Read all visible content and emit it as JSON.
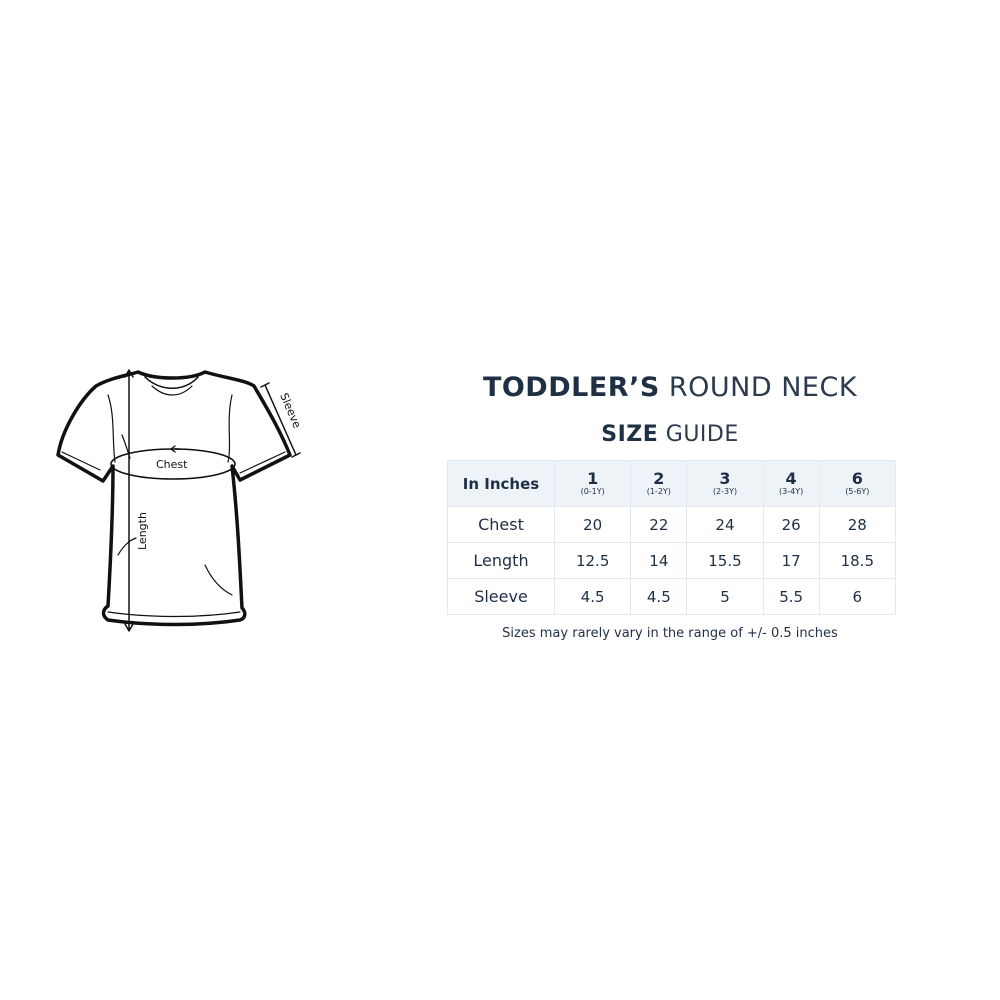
{
  "diagram": {
    "chest_label": "Chest",
    "length_label": "Length",
    "sleeve_label": "Sleeve"
  },
  "title": {
    "line1_bold": "TODDLER’S",
    "line1_light": "ROUND NECK",
    "line2_bold": "SIZE",
    "line2_light": "GUIDE"
  },
  "table": {
    "corner": "In Inches",
    "sizes": [
      {
        "size": "1",
        "age": "(0-1Y)"
      },
      {
        "size": "2",
        "age": "(1-2Y)"
      },
      {
        "size": "3",
        "age": "(2-3Y)"
      },
      {
        "size": "4",
        "age": "(3-4Y)"
      },
      {
        "size": "6",
        "age": "(5-6Y)"
      }
    ],
    "rows": [
      {
        "label": "Chest",
        "values": [
          "20",
          "22",
          "24",
          "26",
          "28"
        ]
      },
      {
        "label": "Length",
        "values": [
          "12.5",
          "14",
          "15.5",
          "17",
          "18.5"
        ]
      },
      {
        "label": "Sleeve",
        "values": [
          "4.5",
          "4.5",
          "5",
          "5.5",
          "6"
        ]
      }
    ]
  },
  "note": "Sizes may rarely vary in the range of +/- 0.5 inches",
  "colors": {
    "text": "#1f2f44",
    "header_bg": "#eef3f8",
    "border": "#e3e8ee"
  }
}
